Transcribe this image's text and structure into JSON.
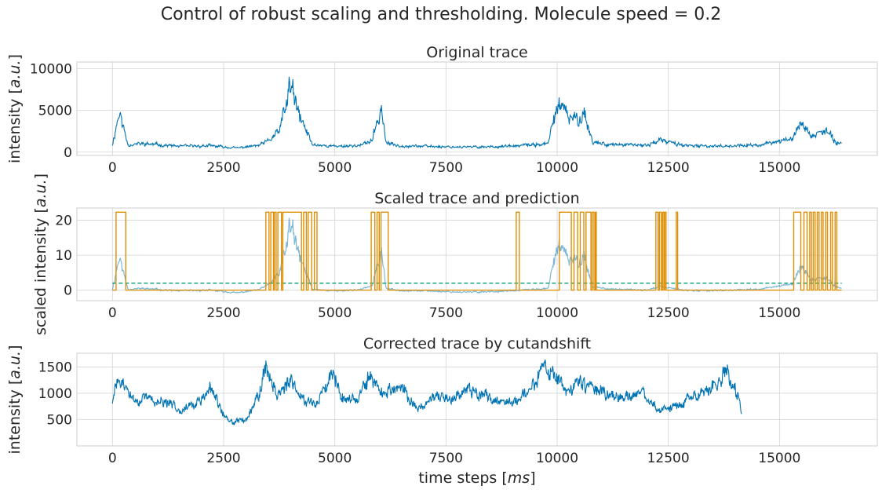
{
  "figure": {
    "suptitle": "Control of robust scaling and thresholding. Molecule speed = 0.2",
    "xlabel": "time steps [ms]"
  },
  "chart_data": [
    {
      "type": "line",
      "title": "Original trace",
      "ylabel": "intensity [a.u.]",
      "xlabel": "",
      "xlim": [
        -800,
        17200
      ],
      "ylim": [
        -400,
        10800
      ],
      "xticks": [
        0,
        2500,
        5000,
        7500,
        10000,
        12500,
        15000
      ],
      "yticks": [
        0,
        5000,
        10000
      ],
      "grid": true,
      "legend": "none",
      "series": [
        {
          "color": "#0173b2",
          "x": [
            0,
            150,
            350,
            700,
            1500,
            2200,
            2800,
            3300,
            3500,
            3750,
            3900,
            4000,
            4150,
            4300,
            4500,
            5000,
            5600,
            5850,
            6050,
            6150,
            6400,
            7000,
            8000,
            9000,
            9800,
            10000,
            10200,
            10400,
            10600,
            10800,
            11200,
            12000,
            12300,
            13000,
            14500,
            15300,
            15500,
            15700,
            16000,
            16400
          ],
          "values": [
            900,
            4800,
            900,
            1000,
            700,
            750,
            500,
            800,
            1300,
            2500,
            5500,
            8200,
            5000,
            3200,
            900,
            700,
            800,
            1500,
            5500,
            1100,
            800,
            700,
            600,
            700,
            1000,
            5800,
            4500,
            3800,
            4800,
            1200,
            900,
            800,
            1400,
            700,
            800,
            1600,
            3800,
            1900,
            2500,
            900
          ]
        }
      ]
    },
    {
      "type": "line",
      "title": "Scaled trace and prediction",
      "ylabel": "scaled intensity [a.u.]",
      "xlabel": "",
      "xlim": [
        -800,
        17200
      ],
      "ylim": [
        -3,
        23.5
      ],
      "xticks": [
        0,
        2500,
        5000,
        7500,
        10000,
        12500,
        15000
      ],
      "yticks": [
        0,
        10,
        20
      ],
      "grid": true,
      "legend": "none",
      "threshold": {
        "value": 2,
        "color": "#029e73"
      },
      "prediction_high": 22.3,
      "prediction_on_intervals": [
        [
          80,
          300
        ],
        [
          3450,
          3520
        ],
        [
          3560,
          3620
        ],
        [
          3640,
          3680
        ],
        [
          3720,
          3800
        ],
        [
          3830,
          4250
        ],
        [
          4300,
          4360
        ],
        [
          4400,
          4480
        ],
        [
          4540,
          4600
        ],
        [
          5820,
          5900
        ],
        [
          5950,
          6000
        ],
        [
          6040,
          6200
        ],
        [
          9080,
          9150
        ],
        [
          10050,
          10320
        ],
        [
          10380,
          10460
        ],
        [
          10520,
          10600
        ],
        [
          10650,
          10760
        ],
        [
          10790,
          10830
        ],
        [
          10860,
          10880
        ],
        [
          12220,
          12270
        ],
        [
          12300,
          12340
        ],
        [
          12370,
          12400
        ],
        [
          12420,
          12450
        ],
        [
          12680,
          12710
        ],
        [
          15320,
          15480
        ],
        [
          15550,
          15620
        ],
        [
          15680,
          15720
        ],
        [
          15760,
          15800
        ],
        [
          15850,
          15890
        ],
        [
          15940,
          15980
        ],
        [
          16040,
          16080
        ],
        [
          16150,
          16190
        ],
        [
          16250,
          16290
        ]
      ],
      "series": [
        {
          "color": "#0173b2",
          "x": [
            0,
            150,
            350,
            700,
            1500,
            2200,
            2800,
            3300,
            3500,
            3750,
            3900,
            4000,
            4150,
            4300,
            4500,
            5000,
            5600,
            5850,
            6050,
            6150,
            6400,
            7000,
            8000,
            9000,
            9800,
            10000,
            10200,
            10400,
            10600,
            10800,
            11200,
            12000,
            12300,
            13000,
            14500,
            15300,
            15500,
            15700,
            16000,
            16400
          ],
          "values": [
            0.2,
            9.5,
            0.3,
            0.5,
            -0.2,
            0,
            -0.8,
            0.2,
            1.5,
            4.5,
            12,
            19,
            11.5,
            6.5,
            0.3,
            -0.2,
            0.2,
            1.5,
            12,
            0.5,
            0,
            -0.2,
            -0.6,
            -0.2,
            0.5,
            13,
            9.5,
            8,
            10,
            1,
            0.3,
            0,
            1,
            -0.2,
            0.2,
            1.8,
            7.5,
            3,
            3.5,
            0.3
          ]
        }
      ]
    },
    {
      "type": "line",
      "title": "Corrected trace by cutandshift",
      "ylabel": "intensity [a.u.]",
      "xlabel": "time steps [ms]",
      "xlim": [
        -800,
        17200
      ],
      "ylim": [
        0,
        1760
      ],
      "xticks": [
        0,
        2500,
        5000,
        7500,
        10000,
        12500,
        15000
      ],
      "yticks": [
        500,
        1000,
        1500
      ],
      "grid": true,
      "legend": "none",
      "series": [
        {
          "color": "#0173b2",
          "x": [
            0,
            100,
            300,
            500,
            800,
            1200,
            1600,
            2000,
            2200,
            2600,
            3000,
            3300,
            3450,
            3700,
            4000,
            4300,
            4600,
            4950,
            5200,
            5500,
            5800,
            6100,
            6500,
            6850,
            7200,
            7600,
            8000,
            8500,
            9000,
            9400,
            9700,
            10000,
            10300,
            10500,
            11000,
            11500,
            11900,
            12300,
            12700,
            13000,
            13300,
            13600,
            13800,
            14000,
            14150
          ],
          "values": [
            800,
            1250,
            1100,
            850,
            900,
            800,
            700,
            850,
            1100,
            450,
            500,
            1000,
            1500,
            1000,
            1200,
            900,
            800,
            1450,
            900,
            900,
            1300,
            1000,
            1100,
            700,
            900,
            900,
            1100,
            900,
            800,
            1100,
            1500,
            1250,
            1000,
            1250,
            1000,
            900,
            1000,
            700,
            750,
            900,
            1000,
            1200,
            1450,
            1100,
            650
          ]
        }
      ]
    }
  ]
}
